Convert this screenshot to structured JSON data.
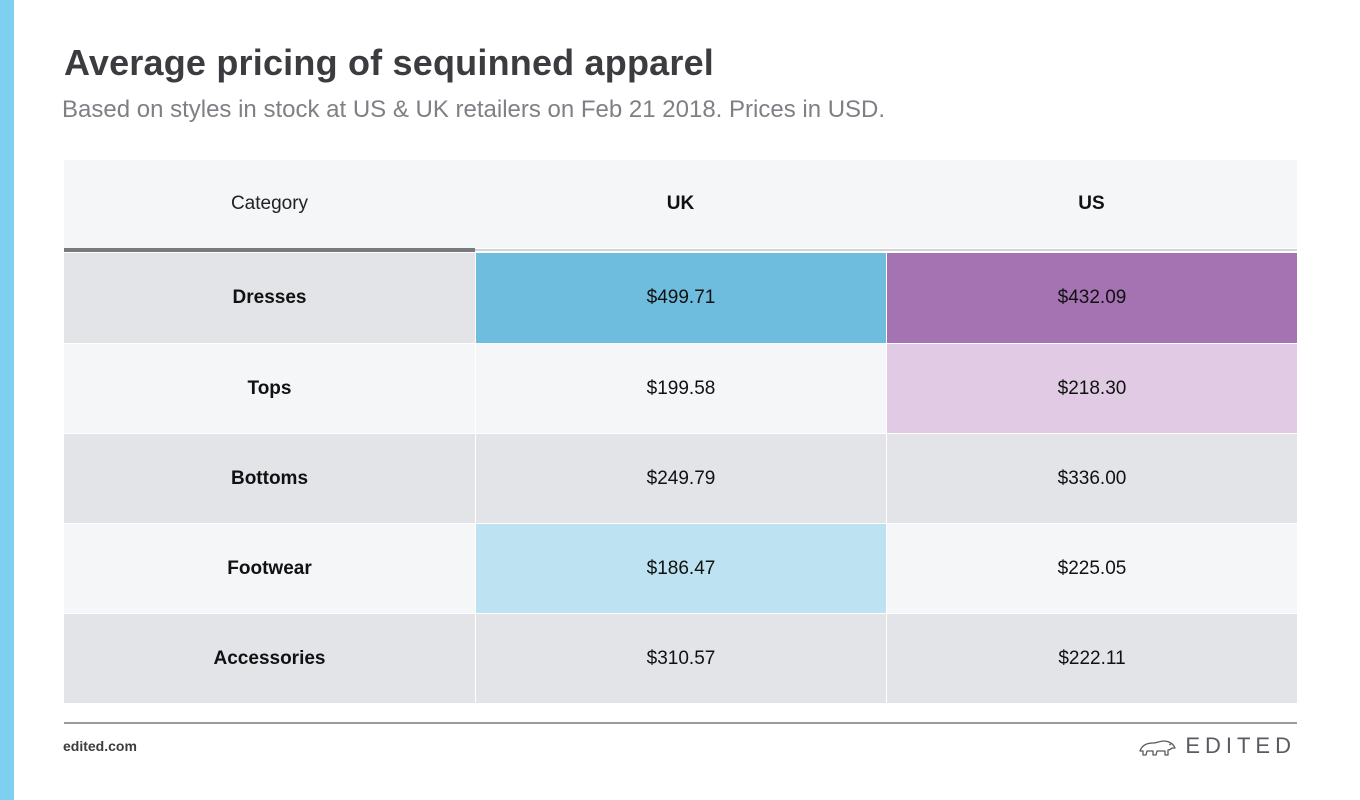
{
  "title": "Average pricing of sequinned apparel",
  "subtitle": "Based on styles in stock at US & UK retailers on Feb 21 2018. Prices in USD.",
  "footer": {
    "url": "edited.com",
    "brand": "EDITED",
    "brand_icon": "polar-bear-icon"
  },
  "colors": {
    "accent_bar": "#7ecff0",
    "uk_high": "#6ebcde",
    "uk_low": "#bde3f2",
    "us_high": "#a573b2",
    "us_mid": "#e1cbe4",
    "row_shade": "#e3e4e8",
    "row_light": "#f5f6f8"
  },
  "chart_data": {
    "type": "table",
    "columns": [
      "Category",
      "UK",
      "US"
    ],
    "rows": [
      {
        "category": "Dresses",
        "uk": "$499.71",
        "us": "$432.09",
        "uk_value": 499.71,
        "us_value": 432.09,
        "uk_color": "#6ebcde",
        "us_color": "#a573b2"
      },
      {
        "category": "Tops",
        "uk": "$199.58",
        "us": "$218.30",
        "uk_value": 199.58,
        "us_value": 218.3,
        "uk_color": null,
        "us_color": "#e1cbe4"
      },
      {
        "category": "Bottoms",
        "uk": "$249.79",
        "us": "$336.00",
        "uk_value": 249.79,
        "us_value": 336.0,
        "uk_color": null,
        "us_color": null
      },
      {
        "category": "Footwear",
        "uk": "$186.47",
        "us": "$225.05",
        "uk_value": 186.47,
        "us_value": 225.05,
        "uk_color": "#bde3f2",
        "us_color": null
      },
      {
        "category": "Accessories",
        "uk": "$310.57",
        "us": "$222.11",
        "uk_value": 310.57,
        "us_value": 222.11,
        "uk_color": null,
        "us_color": null
      }
    ]
  }
}
